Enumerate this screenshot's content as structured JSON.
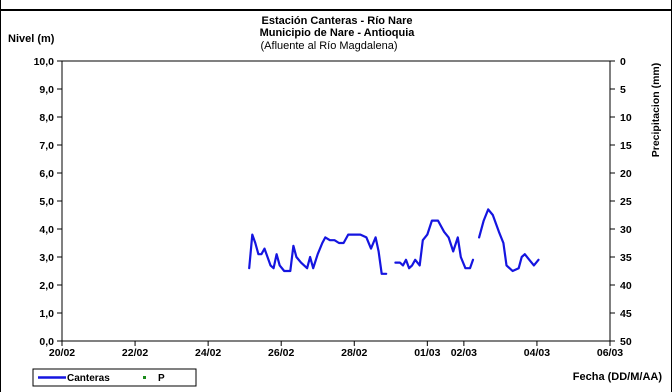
{
  "chart_data": {
    "type": "line",
    "title": [
      "Estación Canteras - Río Nare",
      "Municipio de Nare - Antioquia",
      "(Afluente al Río Magdalena)"
    ],
    "ylabel": "Nivel (m)",
    "y2label": "Precipitacion (mm)",
    "xlabel": "Fecha (DD/M/AA)",
    "xlim": [
      "2020-02-20",
      "2020-03-06"
    ],
    "ylim": [
      0,
      10
    ],
    "y2lim": [
      0,
      50
    ],
    "y2_inverted": true,
    "x_tick_labels": [
      "20/02",
      "22/02",
      "24/02",
      "26/02",
      "28/02",
      "01/03",
      "02/03",
      "04/03",
      "06/03"
    ],
    "x_tick_dates": [
      "2020-02-20",
      "2020-02-22",
      "2020-02-24",
      "2020-02-26",
      "2020-02-28",
      "2020-03-01",
      "2020-03-02",
      "2020-03-04",
      "2020-03-06"
    ],
    "y_tick_labels": [
      "10,0",
      "9,0",
      "8,0",
      "7,0",
      "6,0",
      "5,0",
      "4,0",
      "3,0",
      "2,0",
      "1,0",
      "0,0"
    ],
    "y_tick_values": [
      10,
      9,
      8,
      7,
      6,
      5,
      4,
      3,
      2,
      1,
      0
    ],
    "y2_tick_labels": [
      "0",
      "5",
      "10",
      "15",
      "20",
      "25",
      "30",
      "35",
      "40",
      "45",
      "50"
    ],
    "y2_tick_values": [
      0,
      5,
      10,
      15,
      20,
      25,
      30,
      35,
      40,
      45,
      50
    ],
    "legend": {
      "placement": "bottom-left",
      "entries": [
        "Canteras",
        "P"
      ]
    },
    "colors": {
      "Canteras": "#1515e0",
      "P": "#1b8a1b"
    },
    "series": [
      {
        "name": "Canteras",
        "segments": [
          [
            [
              "2020-02-25T03:00",
              2.6
            ],
            [
              "2020-02-25T05:00",
              3.8
            ],
            [
              "2020-02-25T07:00",
              3.5
            ],
            [
              "2020-02-25T09:00",
              3.1
            ],
            [
              "2020-02-25T11:00",
              3.1
            ],
            [
              "2020-02-25T13:00",
              3.3
            ],
            [
              "2020-02-25T15:00",
              3.0
            ],
            [
              "2020-02-25T17:00",
              2.7
            ],
            [
              "2020-02-25T19:00",
              2.6
            ],
            [
              "2020-02-25T21:00",
              3.1
            ],
            [
              "2020-02-25T23:00",
              2.7
            ],
            [
              "2020-02-26T02:00",
              2.5
            ],
            [
              "2020-02-26T06:00",
              2.5
            ],
            [
              "2020-02-26T08:00",
              3.4
            ],
            [
              "2020-02-26T10:00",
              3.0
            ],
            [
              "2020-02-26T13:00",
              2.8
            ],
            [
              "2020-02-26T17:00",
              2.6
            ],
            [
              "2020-02-26T19:00",
              3.0
            ],
            [
              "2020-02-26T21:00",
              2.6
            ],
            [
              "2020-02-27T00:00",
              3.1
            ],
            [
              "2020-02-27T03:00",
              3.5
            ],
            [
              "2020-02-27T05:00",
              3.7
            ],
            [
              "2020-02-27T08:00",
              3.6
            ],
            [
              "2020-02-27T11:00",
              3.6
            ],
            [
              "2020-02-27T14:00",
              3.5
            ],
            [
              "2020-02-27T17:00",
              3.5
            ],
            [
              "2020-02-27T20:00",
              3.8
            ],
            [
              "2020-02-28T00:00",
              3.8
            ],
            [
              "2020-02-28T04:00",
              3.8
            ],
            [
              "2020-02-28T08:00",
              3.7
            ],
            [
              "2020-02-28T11:00",
              3.3
            ],
            [
              "2020-02-28T14:00",
              3.7
            ],
            [
              "2020-02-28T16:00",
              3.2
            ],
            [
              "2020-02-28T18:00",
              2.4
            ],
            [
              "2020-02-28T21:00",
              2.4
            ]
          ],
          [
            [
              "2020-02-29T03:00",
              2.8
            ],
            [
              "2020-02-29T06:00",
              2.8
            ],
            [
              "2020-02-29T08:00",
              2.7
            ],
            [
              "2020-02-29T10:00",
              2.9
            ],
            [
              "2020-02-29T12:00",
              2.6
            ],
            [
              "2020-02-29T14:00",
              2.7
            ],
            [
              "2020-02-29T16:00",
              2.9
            ],
            [
              "2020-02-29T19:00",
              2.7
            ],
            [
              "2020-02-29T21:00",
              3.6
            ],
            [
              "2020-03-01T00:00",
              3.8
            ],
            [
              "2020-03-01T03:00",
              4.3
            ],
            [
              "2020-03-01T07:00",
              4.3
            ],
            [
              "2020-03-01T11:00",
              3.9
            ],
            [
              "2020-03-01T14:00",
              3.7
            ],
            [
              "2020-03-01T17:00",
              3.2
            ],
            [
              "2020-03-01T20:00",
              3.7
            ],
            [
              "2020-03-01T22:00",
              3.0
            ],
            [
              "2020-03-02T01:00",
              2.6
            ],
            [
              "2020-03-02T04:00",
              2.6
            ],
            [
              "2020-03-02T06:00",
              2.9
            ]
          ],
          [
            [
              "2020-03-02T10:00",
              3.7
            ],
            [
              "2020-03-02T13:00",
              4.3
            ],
            [
              "2020-03-02T16:00",
              4.7
            ],
            [
              "2020-03-02T19:00",
              4.5
            ],
            [
              "2020-03-02T23:00",
              3.9
            ],
            [
              "2020-03-03T02:00",
              3.5
            ],
            [
              "2020-03-03T04:00",
              2.7
            ],
            [
              "2020-03-03T08:00",
              2.5
            ],
            [
              "2020-03-03T12:00",
              2.6
            ],
            [
              "2020-03-03T14:00",
              3.0
            ],
            [
              "2020-03-03T16:00",
              3.1
            ],
            [
              "2020-03-03T19:00",
              2.9
            ],
            [
              "2020-03-03T22:00",
              2.7
            ],
            [
              "2020-03-04T01:00",
              2.9
            ]
          ]
        ]
      },
      {
        "name": "P",
        "values": []
      }
    ]
  }
}
